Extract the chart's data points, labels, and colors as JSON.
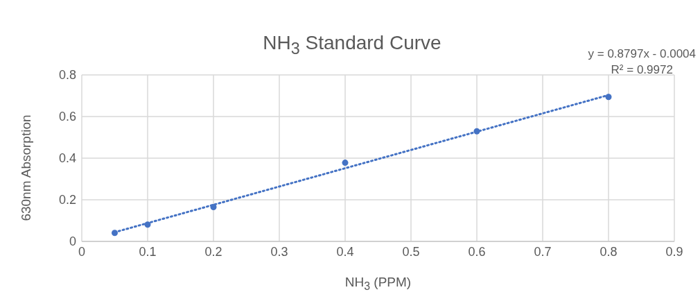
{
  "chart_data": {
    "type": "scatter",
    "title": "NH$_{3}$ Standard Curve",
    "xlabel": "NH$_{3}$ (PPM)",
    "ylabel": "630nm Absorption",
    "x": [
      0.05,
      0.1,
      0.2,
      0.4,
      0.6,
      0.8
    ],
    "series": [
      {
        "color": "#4472c4",
        "marker": "circle",
        "values": [
          0.041,
          0.081,
          0.165,
          0.378,
          0.529,
          0.694
        ]
      },
      {
        "type": "line",
        "color": "#4472c4",
        "line_style": "dotted",
        "x": [
          0.05,
          0.8
        ],
        "values": [
          0.044,
          0.703
        ]
      }
    ],
    "xlim": [
      0,
      0.9
    ],
    "xticks": [
      0,
      0.1,
      0.2,
      0.3,
      0.4,
      0.5,
      0.6,
      0.7,
      0.8,
      0.9
    ],
    "ylim": [
      0,
      0.8
    ],
    "yticks": [
      0,
      0.2,
      0.4,
      0.6,
      0.8
    ],
    "grid": true,
    "annotations": [
      "y = 0.8797x - 0.0004",
      "R² = 0.9972"
    ]
  }
}
